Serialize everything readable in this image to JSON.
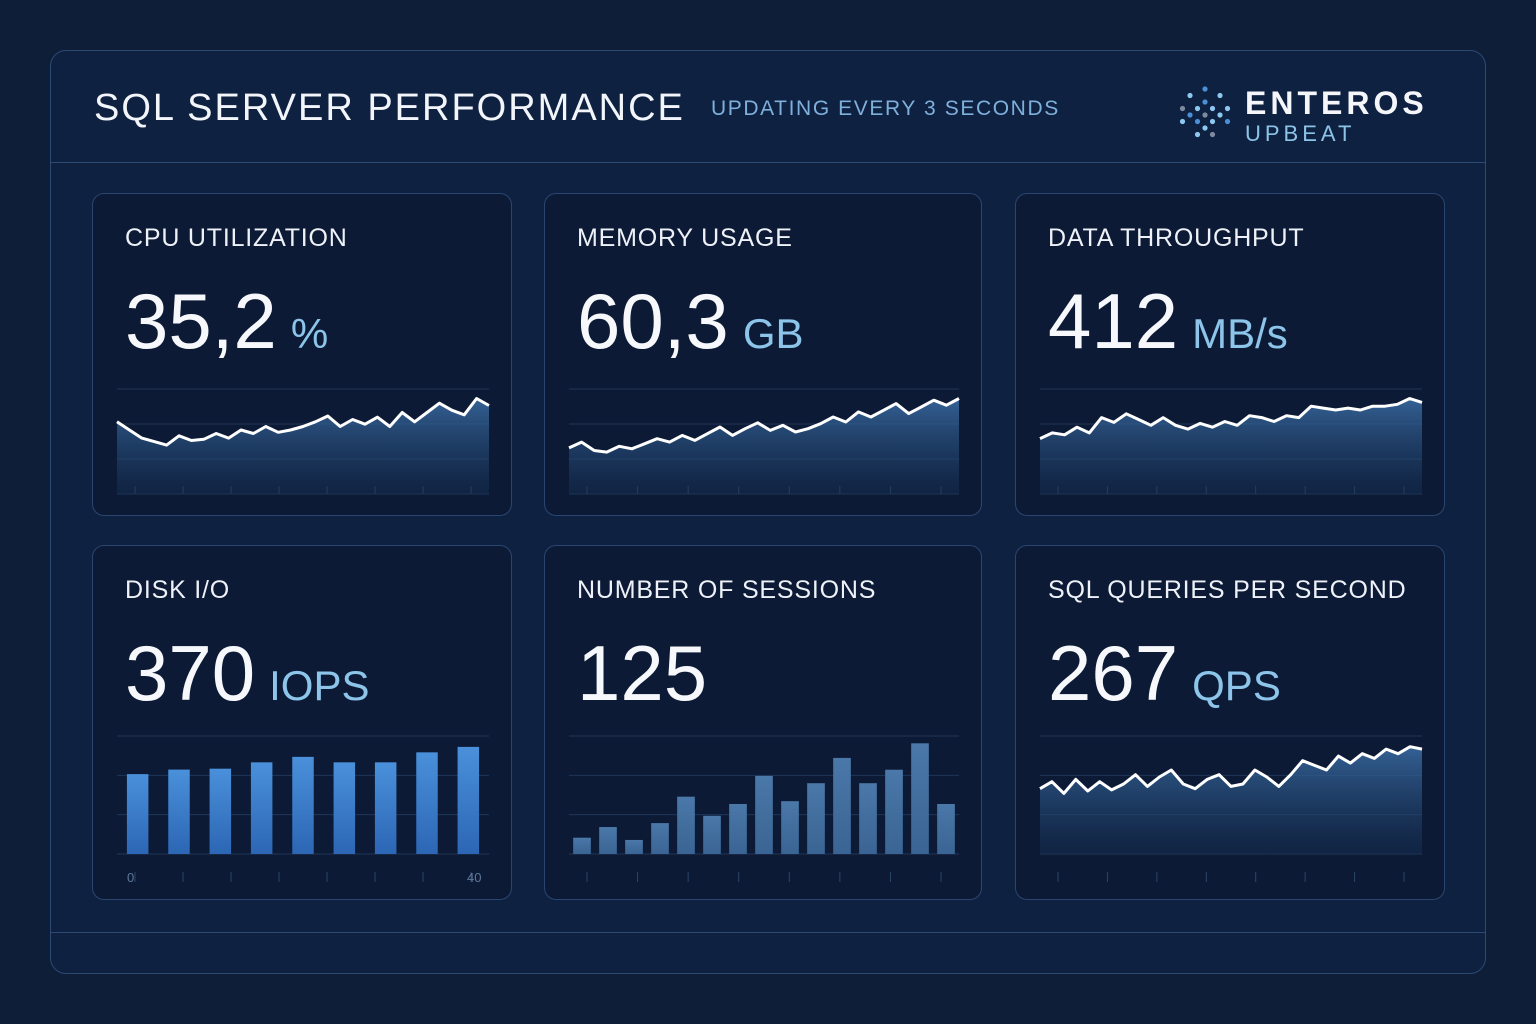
{
  "header": {
    "title": "SQL SERVER PERFORMANCE",
    "subtitle": "UPDATING EVERY 3 SECONDS",
    "logo_name": "ENTEROS",
    "logo_sub": "UPBEAT"
  },
  "colors": {
    "background": "#0e1d38",
    "accent": "#8cc4ea",
    "bar": "#3f86d0",
    "line": "#ffffff"
  },
  "cards": [
    {
      "label": "CPU UTILIZATION",
      "value": "35,2",
      "unit": "%",
      "chart": "line",
      "series": [
        62,
        55,
        48,
        45,
        42,
        50,
        46,
        47,
        52,
        48,
        55,
        52,
        58,
        53,
        55,
        58,
        62,
        67,
        58,
        64,
        60,
        66,
        58,
        70,
        62,
        70,
        78,
        72,
        68,
        82,
        76
      ]
    },
    {
      "label": "MEMORY USAGE",
      "value": "60,3",
      "unit": "GB",
      "chart": "line",
      "series": [
        55,
        62,
        52,
        50,
        57,
        54,
        60,
        66,
        62,
        70,
        64,
        72,
        80,
        70,
        78,
        85,
        76,
        82,
        74,
        78,
        84,
        92,
        86,
        98,
        92,
        100,
        108,
        96,
        104,
        112,
        106,
        114
      ]
    },
    {
      "label": "DATA THROUGHPUT",
      "value": "412",
      "unit": "MB/s",
      "chart": "line",
      "series": [
        58,
        64,
        62,
        70,
        64,
        80,
        75,
        84,
        78,
        72,
        80,
        72,
        68,
        74,
        70,
        76,
        72,
        82,
        80,
        76,
        82,
        80,
        92,
        90,
        88,
        90,
        88,
        92,
        92,
        94,
        100,
        96
      ]
    },
    {
      "label": "DISK I/O",
      "value": "370",
      "unit": "IOPS",
      "chart": "bar",
      "series": [
        88,
        93,
        94,
        101,
        107,
        101,
        101,
        112,
        118
      ],
      "axis": [
        "0",
        "40"
      ]
    },
    {
      "label": "NUMBER OF SESSIONS",
      "value": "125",
      "unit": "",
      "chart": "bar",
      "series": [
        29,
        48,
        25,
        55,
        102,
        68,
        89,
        139,
        94,
        126,
        171,
        126,
        150,
        197,
        89
      ]
    },
    {
      "label": "SQL QUERIES PER SECOND",
      "value": "267",
      "unit": "QPS",
      "chart": "line",
      "series": [
        56,
        62,
        52,
        64,
        54,
        62,
        55,
        60,
        68,
        58,
        66,
        72,
        60,
        56,
        64,
        68,
        58,
        60,
        72,
        66,
        58,
        68,
        80,
        76,
        72,
        84,
        78,
        86,
        82,
        90,
        86,
        92,
        90
      ]
    }
  ]
}
